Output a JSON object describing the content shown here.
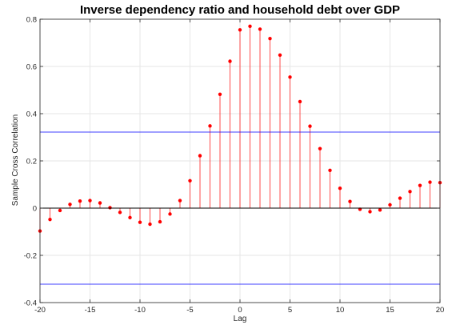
{
  "chart_data": {
    "type": "stem",
    "title": "Inverse dependency ratio and household debt over GDP",
    "xlabel": "Lag",
    "ylabel": "Sample Cross Correlation",
    "xlim": [
      -20,
      20
    ],
    "ylim": [
      -0.4,
      0.8
    ],
    "xticks": [
      -20,
      -15,
      -10,
      -5,
      0,
      5,
      10,
      15,
      20
    ],
    "yticks": [
      -0.4,
      -0.2,
      0,
      0.2,
      0.4,
      0.6,
      0.8
    ],
    "xtick_labels": [
      "-20",
      "-15",
      "-10",
      "-5",
      "0",
      "5",
      "10",
      "15",
      "20"
    ],
    "ytick_labels": [
      "-0.4",
      "-0.2",
      "0",
      "0.2",
      "0.4",
      "0.6",
      "0.8"
    ],
    "grid": true,
    "series": [
      {
        "x": [
          -20,
          -19,
          -18,
          -17,
          -16,
          -15,
          -14,
          -13,
          -12,
          -11,
          -10,
          -9,
          -8,
          -7,
          -6,
          -5,
          -4,
          -3,
          -2,
          -1,
          0,
          1,
          2,
          3,
          4,
          5,
          6,
          7,
          8,
          9,
          10,
          11,
          12,
          13,
          14,
          15,
          16,
          17,
          18,
          19,
          20
        ],
        "values": [
          -0.097,
          -0.048,
          -0.01,
          0.016,
          0.03,
          0.032,
          0.022,
          0.002,
          -0.018,
          -0.04,
          -0.06,
          -0.068,
          -0.058,
          -0.025,
          0.032,
          0.116,
          0.222,
          0.348,
          0.482,
          0.622,
          0.755,
          0.77,
          0.758,
          0.718,
          0.648,
          0.555,
          0.451,
          0.347,
          0.252,
          0.16,
          0.084,
          0.028,
          -0.005,
          -0.015,
          -0.008,
          0.014,
          0.042,
          0.07,
          0.096,
          0.11,
          0.108
        ],
        "color": "#ff0000"
      }
    ],
    "confidence_bounds": [
      0.322,
      -0.322
    ],
    "bound_color": "#0000ff",
    "zero_line_color": "#000000"
  }
}
